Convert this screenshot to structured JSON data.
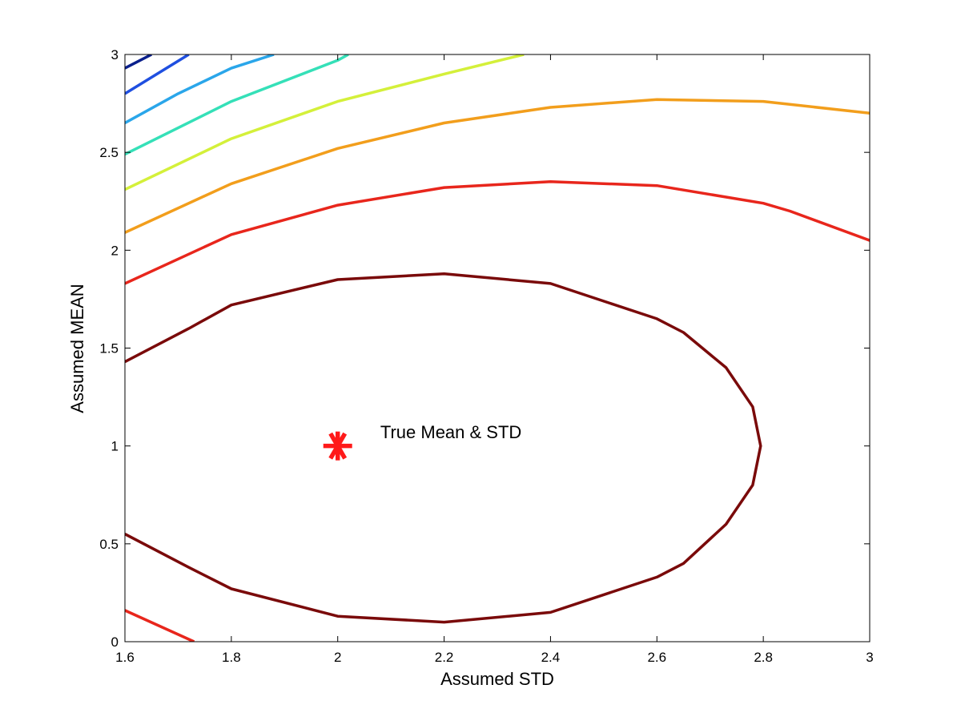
{
  "chart_data": {
    "type": "line",
    "subtype": "contour",
    "title": "",
    "xlabel": "Assumed STD",
    "ylabel": "Assumed MEAN",
    "xlim": [
      1.6,
      3
    ],
    "ylim": [
      0,
      3
    ],
    "xticks": [
      1.6,
      1.8,
      2,
      2.2,
      2.4,
      2.6,
      2.8,
      3
    ],
    "yticks": [
      0,
      0.5,
      1,
      1.5,
      2,
      2.5,
      3
    ],
    "xtick_labels": [
      "1.6",
      "1.8",
      "2",
      "2.2",
      "2.4",
      "2.6",
      "2.8",
      "3"
    ],
    "ytick_labels": [
      "0",
      "0.5",
      "1",
      "1.5",
      "2",
      "2.5",
      "3"
    ],
    "grid": false,
    "box": true,
    "marker": {
      "x": 2.0,
      "y": 1.0,
      "symbol": "asterisk",
      "color": "#ff1a1a"
    },
    "annotation": {
      "text": "True Mean & STD",
      "x": 2.08,
      "y": 1.04
    },
    "series": [
      {
        "color": "#7a0a0a",
        "points": [
          [
            1.6,
            1.43
          ],
          [
            1.72,
            1.6
          ],
          [
            1.8,
            1.72
          ],
          [
            2.0,
            1.85
          ],
          [
            2.2,
            1.88
          ],
          [
            2.4,
            1.83
          ],
          [
            2.6,
            1.65
          ],
          [
            2.65,
            1.58
          ],
          [
            2.73,
            1.4
          ],
          [
            2.78,
            1.2
          ],
          [
            2.795,
            1.0
          ],
          [
            2.78,
            0.8
          ],
          [
            2.73,
            0.6
          ],
          [
            2.65,
            0.4
          ],
          [
            2.6,
            0.33
          ],
          [
            2.4,
            0.15
          ],
          [
            2.2,
            0.1
          ],
          [
            2.0,
            0.13
          ],
          [
            1.8,
            0.27
          ],
          [
            1.72,
            0.38
          ],
          [
            1.6,
            0.55
          ]
        ]
      },
      {
        "color": "#e8261c",
        "points": [
          [
            1.6,
            1.83
          ],
          [
            1.8,
            2.08
          ],
          [
            2.0,
            2.23
          ],
          [
            2.2,
            2.32
          ],
          [
            2.4,
            2.35
          ],
          [
            2.6,
            2.33
          ],
          [
            2.8,
            2.24
          ],
          [
            2.85,
            2.2
          ],
          [
            3.0,
            2.05
          ]
        ]
      },
      {
        "color": "#e8261c",
        "points": [
          [
            1.6,
            0.16
          ],
          [
            1.73,
            0.0
          ]
        ]
      },
      {
        "color": "#f29e1c",
        "points": [
          [
            1.6,
            2.09
          ],
          [
            1.8,
            2.34
          ],
          [
            2.0,
            2.52
          ],
          [
            2.2,
            2.65
          ],
          [
            2.4,
            2.73
          ],
          [
            2.6,
            2.77
          ],
          [
            2.8,
            2.76
          ],
          [
            3.0,
            2.7
          ]
        ]
      },
      {
        "color": "#d4f03a",
        "points": [
          [
            1.6,
            2.31
          ],
          [
            1.8,
            2.57
          ],
          [
            2.0,
            2.76
          ],
          [
            2.2,
            2.9
          ],
          [
            2.35,
            3.0
          ]
        ]
      },
      {
        "color": "#35e0b8",
        "points": [
          [
            1.6,
            2.49
          ],
          [
            1.8,
            2.76
          ],
          [
            2.0,
            2.97
          ],
          [
            2.02,
            3.0
          ]
        ]
      },
      {
        "color": "#2aa6ea",
        "points": [
          [
            1.6,
            2.65
          ],
          [
            1.7,
            2.8
          ],
          [
            1.8,
            2.93
          ],
          [
            1.88,
            3.0
          ]
        ]
      },
      {
        "color": "#1f4fe0",
        "points": [
          [
            1.6,
            2.8
          ],
          [
            1.72,
            3.0
          ]
        ]
      },
      {
        "color": "#0a1f8c",
        "points": [
          [
            1.6,
            2.93
          ],
          [
            1.65,
            3.0
          ]
        ]
      }
    ]
  }
}
